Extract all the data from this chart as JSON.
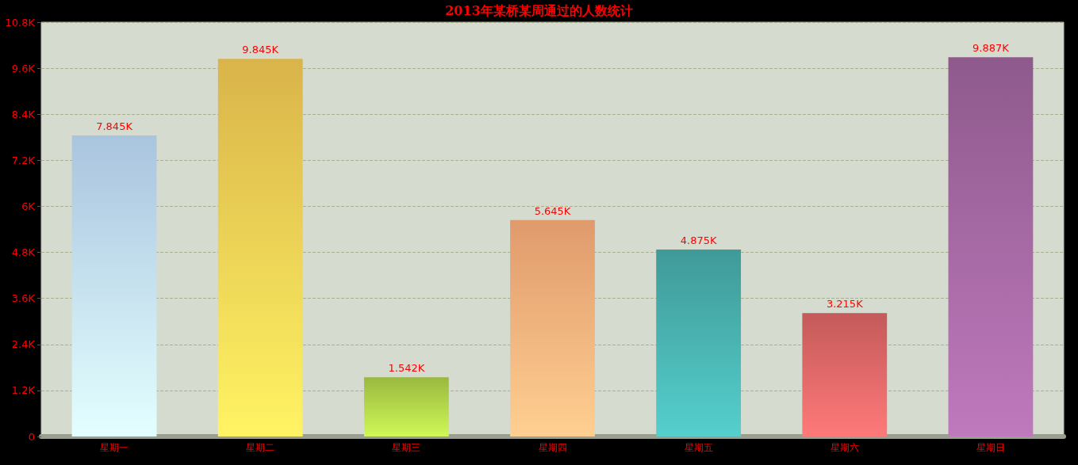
{
  "chart_data": {
    "type": "bar",
    "title": "2013年某桥某周通过的人数统计",
    "categories": [
      "星期一",
      "星期二",
      "星期三",
      "星期四",
      "星期五",
      "星期六",
      "星期日"
    ],
    "values": [
      7845,
      9845,
      1542,
      5645,
      4875,
      3215,
      9887
    ],
    "value_labels": [
      "7.845K",
      "9.845K",
      "1.542K",
      "5.645K",
      "4.875K",
      "3.215K",
      "9.887K"
    ],
    "colors": [
      "#a9c4de",
      "#d9b44a",
      "#9ab840",
      "#e09a6c",
      "#3f9a98",
      "#c45a5a",
      "#8e5a8c"
    ],
    "ylim": [
      0,
      10800
    ],
    "yticks": [
      {
        "value": 0,
        "label": "0"
      },
      {
        "value": 1200,
        "label": "1.2K"
      },
      {
        "value": 2400,
        "label": "2.4K"
      },
      {
        "value": 3600,
        "label": "3.6K"
      },
      {
        "value": 4800,
        "label": "4.8K"
      },
      {
        "value": 6000,
        "label": "6K"
      },
      {
        "value": 7200,
        "label": "7.2K"
      },
      {
        "value": 8400,
        "label": "8.4K"
      },
      {
        "value": 9600,
        "label": "9.6K"
      },
      {
        "value": 10800,
        "label": "10.8K"
      }
    ],
    "grid": "y"
  }
}
